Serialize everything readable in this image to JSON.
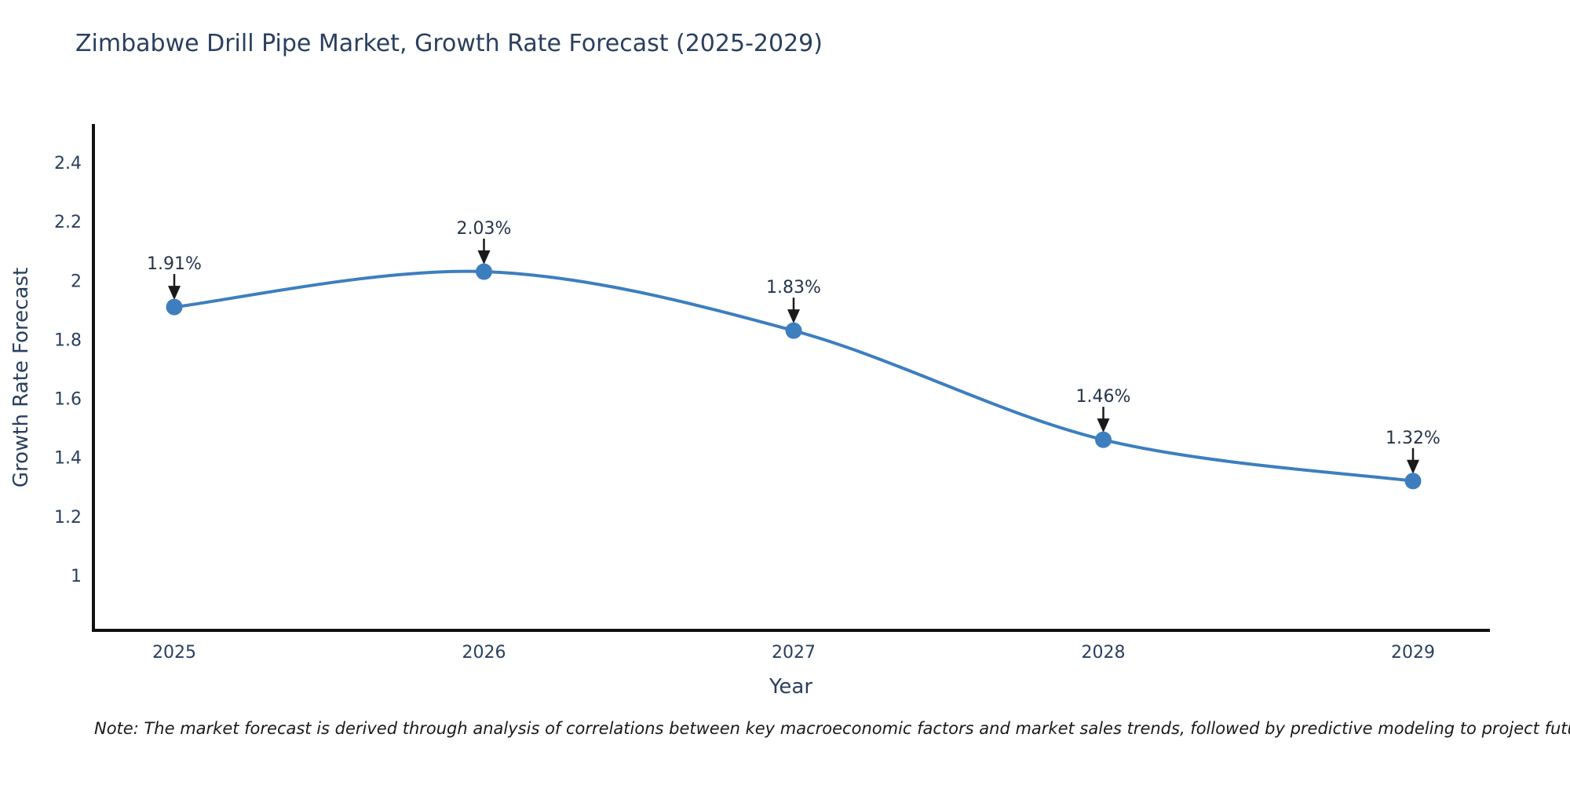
{
  "chart_data": {
    "type": "line",
    "title": "Zimbabwe Drill Pipe Market, Growth Rate Forecast (2025-2029)",
    "xlabel": "Year",
    "ylabel": "Growth Rate Forecast",
    "categories": [
      "2025",
      "2026",
      "2027",
      "2028",
      "2029"
    ],
    "series": [
      {
        "name": "Growth Rate Forecast",
        "values": [
          1.91,
          2.03,
          1.83,
          1.46,
          1.32
        ],
        "point_labels": [
          "1.91%",
          "2.03%",
          "1.83%",
          "1.46%",
          "1.32%"
        ]
      }
    ],
    "ytick_values": [
      2.4,
      2.2,
      2.0,
      1.8,
      1.6,
      1.4,
      1.2,
      1.0
    ],
    "ytick_labels": [
      "2.4",
      "2.2",
      "2",
      "1.8",
      "1.6",
      "1.4",
      "1.2",
      "1"
    ],
    "ylim": [
      0.82,
      2.53
    ],
    "grid": false,
    "legend_position": "none",
    "line_shape": "spline",
    "annotations_style": "value label with downward arrow to each point",
    "colors": {
      "line": "#3d7ebf",
      "marker": "#3d7ebf",
      "axis": "#111111",
      "text": "#2a3f5f",
      "annotation_text": "#26344a",
      "annotation_arrow": "#1a1a1a",
      "background": "#ffffff"
    },
    "note": "Note: The market forecast is derived through analysis of correlations between key macroeconomic factors and market sales trends, followed by predictive modeling to project future sales"
  }
}
